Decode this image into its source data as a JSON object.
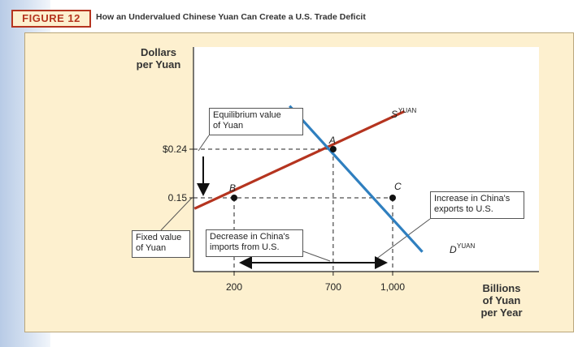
{
  "figure": {
    "tag": "FIGURE 12",
    "title": "How an Undervalued Chinese Yuan Can Create a U.S. Trade Deficit"
  },
  "chart_data": {
    "type": "line",
    "ylabel_line1": "Dollars",
    "ylabel_line2": "per Yuan",
    "xlabel_line1": "Billions",
    "xlabel_line2": "of Yuan",
    "xlabel_line3": "per Year",
    "xticks": [
      200,
      700,
      1000
    ],
    "xtick_labels": [
      "200",
      "700",
      "1,000"
    ],
    "yticks": [
      0.15,
      0.24
    ],
    "ytick_labels": [
      "0.15",
      "$0.24"
    ],
    "series": [
      {
        "name": "S",
        "name_sup": "YUAN",
        "color": "#b5341f",
        "points": [
          [
            0,
            0.13
          ],
          [
            1060,
            0.31
          ]
        ]
      },
      {
        "name": "D",
        "name_sup": "YUAN",
        "color": "#2f7fbf",
        "points": [
          [
            480,
            0.32
          ],
          [
            1150,
            0.05
          ]
        ]
      }
    ],
    "points": [
      {
        "label": "A",
        "x": 700,
        "y": 0.24
      },
      {
        "label": "B",
        "x": 200,
        "y": 0.15
      },
      {
        "label": "C",
        "x": 1000,
        "y": 0.15
      }
    ],
    "annotations": {
      "equilibrium_line1": "Equilibrium value",
      "equilibrium_line2": "of Yuan",
      "fixed_line1": "Fixed value",
      "fixed_line2": "of Yuan",
      "decrease_line1": "Decrease in China's",
      "decrease_line2": "imports from U.S.",
      "increase_line1": "Increase in China's",
      "increase_line2": "exports to U.S."
    }
  }
}
